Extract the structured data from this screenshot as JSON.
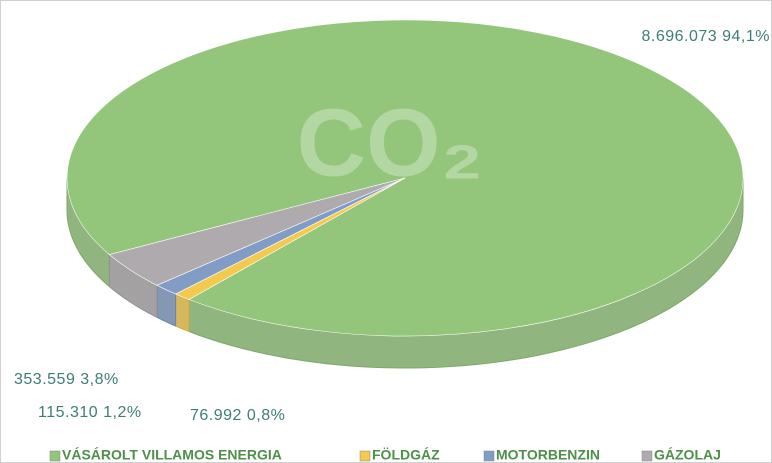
{
  "chart_data": {
    "type": "pie3d",
    "annotation": "CO₂",
    "categories": [
      "VÁSÁROLT VILLAMOS ENERGIA",
      "FÖLDGÁZ",
      "MOTORBENZIN",
      "GÁZOLAJ"
    ],
    "values": [
      8696073,
      76992,
      115310,
      353559
    ],
    "value_labels": [
      "8.696.073 94,1%",
      "76.992 0,8%",
      "115.310 1,2%",
      "353.559 3,8%"
    ],
    "colors": [
      "#93c67a",
      "#f3c94e",
      "#819dc6",
      "#aeaaad"
    ],
    "legend": "bottom"
  }
}
